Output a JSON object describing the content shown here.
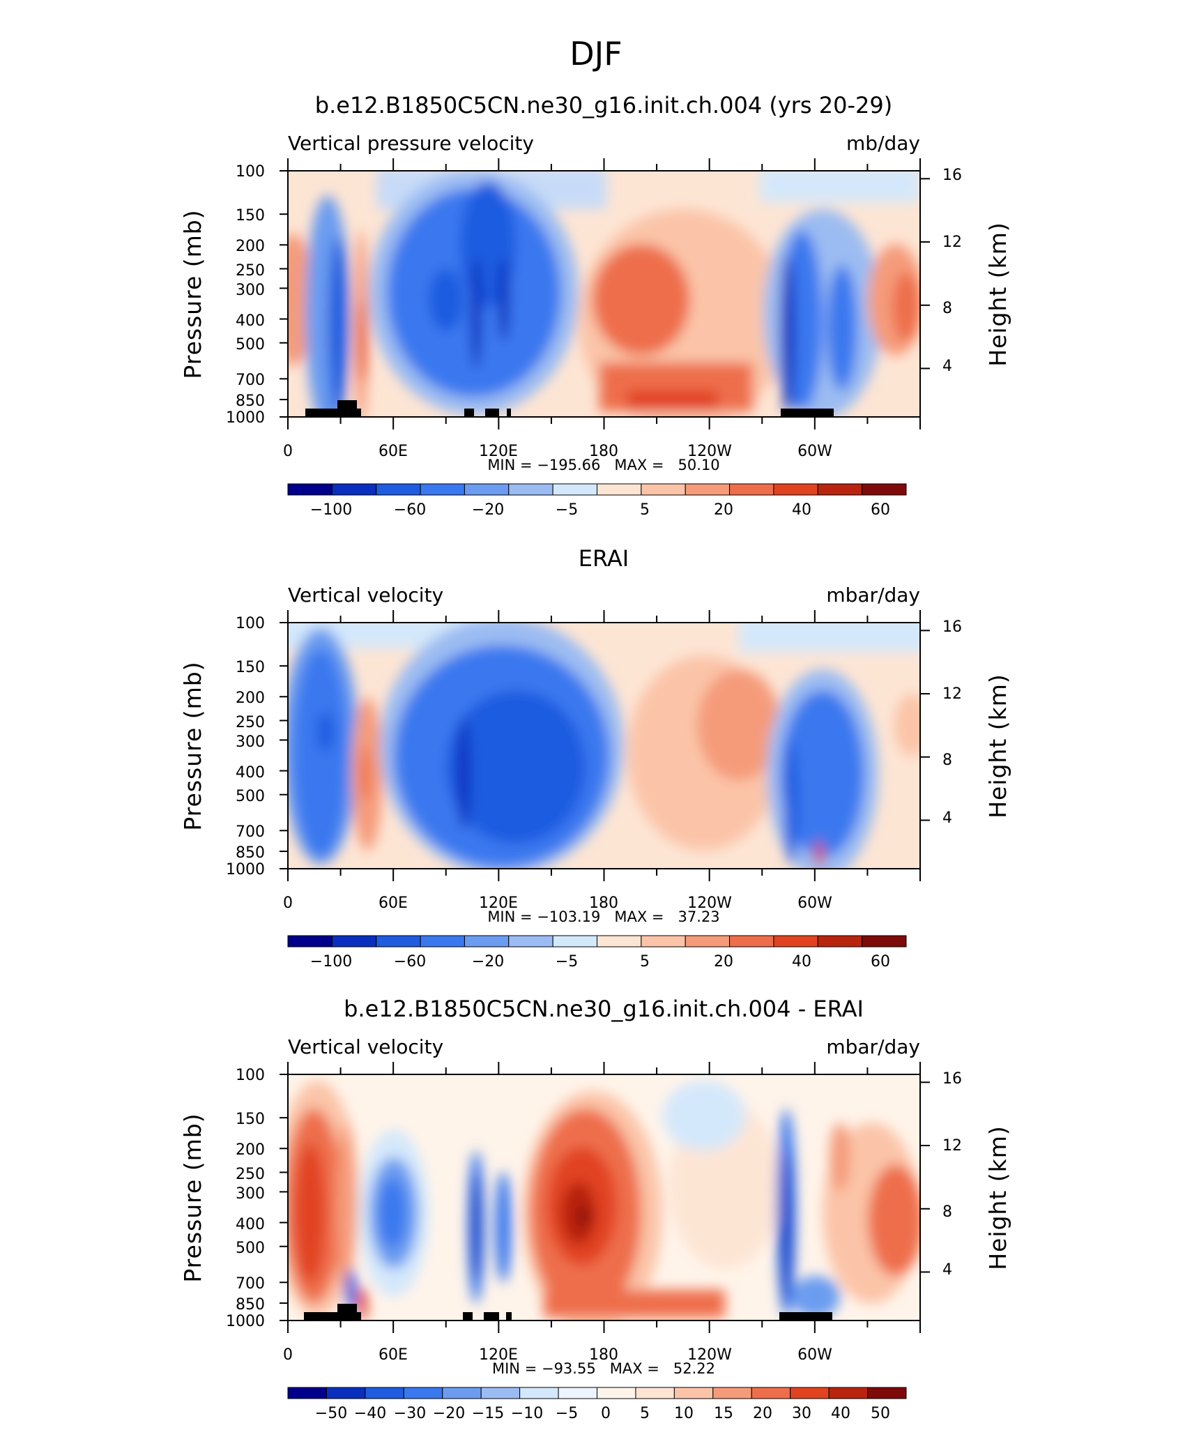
{
  "figure": {
    "super_title": "DJF"
  },
  "chart_data": [
    {
      "type": "heatmap",
      "title": "b.e12.B1850C5CN.ne30_g16.init.ch.004 (yrs 20-29)",
      "left_label": "Vertical pressure velocity",
      "right_label": "mb/day",
      "ylabel": "Pressure (mb)",
      "ylabel2": "Height (km)",
      "x_ticks": [
        "0",
        "60E",
        "120E",
        "180",
        "120W",
        "60W"
      ],
      "y_ticks": [
        "100",
        "150",
        "200",
        "250",
        "300",
        "400",
        "500",
        "700",
        "850",
        "1000"
      ],
      "y2_ticks": [
        "16",
        "12",
        "8",
        "4"
      ],
      "stats_text": "MIN = −195.66   MAX =   50.10",
      "min": -195.66,
      "max": 50.1,
      "colorbar_labels": [
        "−100",
        "−60",
        "−20",
        "−5",
        "5",
        "20",
        "40",
        "60"
      ],
      "colorbar_colors": [
        "#00008c",
        "#0a2fbe",
        "#1f5ce0",
        "#3a78ef",
        "#6b9cf0",
        "#9bbcf2",
        "#d4e8fb",
        "#fde5d4",
        "#fbc4a8",
        "#f59b7a",
        "#ee6e4c",
        "#e14320",
        "#b8240e",
        "#7e0a0a"
      ]
    },
    {
      "type": "heatmap",
      "title": "ERAI",
      "left_label": "Vertical velocity",
      "right_label": "mbar/day",
      "ylabel": "Pressure (mb)",
      "ylabel2": "Height (km)",
      "x_ticks": [
        "0",
        "60E",
        "120E",
        "180",
        "120W",
        "60W"
      ],
      "y_ticks": [
        "100",
        "150",
        "200",
        "250",
        "300",
        "400",
        "500",
        "700",
        "850",
        "1000"
      ],
      "y2_ticks": [
        "16",
        "12",
        "8",
        "4"
      ],
      "stats_text": "MIN = −103.19   MAX =   37.23",
      "min": -103.19,
      "max": 37.23,
      "colorbar_labels": [
        "−100",
        "−60",
        "−20",
        "−5",
        "5",
        "20",
        "40",
        "60"
      ],
      "colorbar_colors": [
        "#00008c",
        "#0a2fbe",
        "#1f5ce0",
        "#3a78ef",
        "#6b9cf0",
        "#9bbcf2",
        "#d4e8fb",
        "#fde5d4",
        "#fbc4a8",
        "#f59b7a",
        "#ee6e4c",
        "#e14320",
        "#b8240e",
        "#7e0a0a"
      ]
    },
    {
      "type": "heatmap",
      "title": "b.e12.B1850C5CN.ne30_g16.init.ch.004 - ERAI",
      "left_label": "Vertical velocity",
      "right_label": "mbar/day",
      "ylabel": "Pressure (mb)",
      "ylabel2": "Height (km)",
      "x_ticks": [
        "0",
        "60E",
        "120E",
        "180",
        "120W",
        "60W"
      ],
      "y_ticks": [
        "100",
        "150",
        "200",
        "250",
        "300",
        "400",
        "500",
        "700",
        "850",
        "1000"
      ],
      "y2_ticks": [
        "16",
        "12",
        "8",
        "4"
      ],
      "stats_text": "MIN = −93.55   MAX =   52.22",
      "min": -93.55,
      "max": 52.22,
      "colorbar_labels": [
        "−50",
        "−40",
        "−30",
        "−20",
        "−15",
        "−10",
        "−5",
        "0",
        "5",
        "10",
        "15",
        "20",
        "30",
        "40",
        "50"
      ],
      "colorbar_colors": [
        "#00008c",
        "#0a2fbe",
        "#1f5ce0",
        "#3a78ef",
        "#6b9cf0",
        "#9bbcf2",
        "#d4e8fb",
        "#eef4fd",
        "#fff4ea",
        "#fde5d4",
        "#fbc4a8",
        "#f59b7a",
        "#ee6e4c",
        "#e14320",
        "#b8240e",
        "#7e0a0a"
      ]
    }
  ]
}
